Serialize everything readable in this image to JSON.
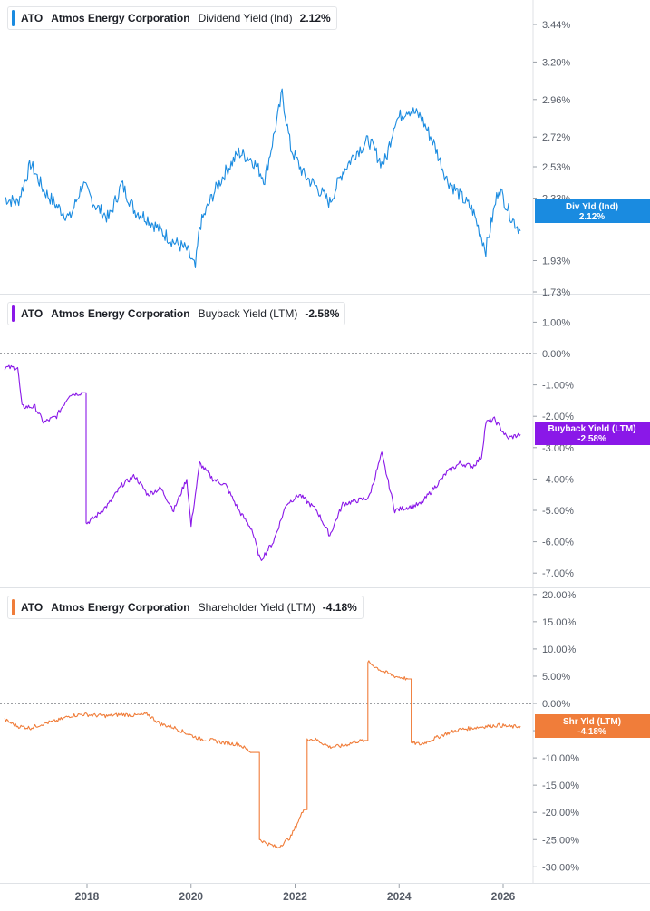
{
  "colors": {
    "dividend": "#1a8be0",
    "buyback": "#8a18e8",
    "shareholder": "#f07d3a",
    "grid": "#dfe2e6",
    "axis_text": "#555b66"
  },
  "x_axis": {
    "ticks": [
      "2018",
      "2020",
      "2022",
      "2024",
      "2026"
    ]
  },
  "panels": [
    {
      "legend": {
        "ticker": "ATO",
        "company": "Atmos Energy Corporation",
        "metric": "Dividend Yield (Ind)",
        "value": "2.12%"
      },
      "badge": {
        "label": "Div Yld (Ind)",
        "value": "2.12%"
      },
      "y_ticks": [
        "3.44%",
        "3.20%",
        "2.96%",
        "2.72%",
        "2.53%",
        "2.33%",
        "1.93%",
        "1.73%"
      ]
    },
    {
      "legend": {
        "ticker": "ATO",
        "company": "Atmos Energy Corporation",
        "metric": "Buyback Yield (LTM)",
        "value": "-2.58%"
      },
      "badge": {
        "label": "Buyback Yield (LTM)",
        "value": "-2.58%"
      },
      "y_ticks": [
        "1.00%",
        "0.00%",
        "-1.00%",
        "-2.00%",
        "-3.00%",
        "-4.00%",
        "-5.00%",
        "-6.00%",
        "-7.00%"
      ]
    },
    {
      "legend": {
        "ticker": "ATO",
        "company": "Atmos Energy Corporation",
        "metric": "Shareholder Yield (LTM)",
        "value": "-4.18%"
      },
      "badge": {
        "label": "Shr Yld (LTM)",
        "value": "-4.18%"
      },
      "y_ticks": [
        "20.00%",
        "15.00%",
        "10.00%",
        "5.00%",
        "0.00%",
        "-5.00%",
        "-10.00%",
        "-15.00%",
        "-20.00%",
        "-25.00%",
        "-30.00%"
      ]
    }
  ],
  "chart_data": [
    {
      "type": "line",
      "series": [
        {
          "name": "Dividend Yield (Ind)",
          "unit": "%",
          "x": [
            "2016-06",
            "2016-09",
            "2016-12",
            "2017-03",
            "2017-06",
            "2017-09",
            "2017-12",
            "2018-03",
            "2018-06",
            "2018-09",
            "2018-12",
            "2019-03",
            "2019-06",
            "2019-09",
            "2019-12",
            "2020-02",
            "2020-03",
            "2020-06",
            "2020-09",
            "2020-12",
            "2021-03",
            "2021-06",
            "2021-09",
            "2021-10",
            "2021-12",
            "2022-03",
            "2022-06",
            "2022-09",
            "2022-12",
            "2023-03",
            "2023-06",
            "2023-09",
            "2023-10",
            "2023-12",
            "2024-03",
            "2024-06",
            "2024-09",
            "2024-12",
            "2025-03",
            "2025-06",
            "2025-09",
            "2025-12",
            "2026-03",
            "2026-05"
          ],
          "values": [
            2.33,
            2.3,
            2.55,
            2.38,
            2.28,
            2.2,
            2.42,
            2.28,
            2.2,
            2.42,
            2.25,
            2.2,
            2.12,
            2.05,
            2.0,
            1.88,
            2.15,
            2.35,
            2.5,
            2.62,
            2.58,
            2.45,
            2.85,
            3.0,
            2.65,
            2.48,
            2.4,
            2.3,
            2.5,
            2.62,
            2.7,
            2.55,
            2.58,
            2.82,
            2.9,
            2.85,
            2.68,
            2.45,
            2.35,
            2.25,
            2.0,
            2.4,
            2.2,
            2.12
          ]
        }
      ],
      "ylim": [
        1.73,
        3.56
      ]
    },
    {
      "type": "line",
      "series": [
        {
          "name": "Buyback Yield (LTM)",
          "unit": "%",
          "x": [
            "2016-06",
            "2016-09",
            "2016-10",
            "2017-01",
            "2017-03",
            "2017-06",
            "2017-09",
            "2017-12",
            "2018-01",
            "2018-03",
            "2018-06",
            "2018-09",
            "2018-12",
            "2019-03",
            "2019-06",
            "2019-09",
            "2019-12",
            "2020-01",
            "2020-03",
            "2020-06",
            "2020-09",
            "2020-12",
            "2021-03",
            "2021-05",
            "2021-08",
            "2021-11",
            "2022-02",
            "2022-06",
            "2022-09",
            "2022-12",
            "2023-03",
            "2023-06",
            "2023-09",
            "2023-12",
            "2024-03",
            "2024-06",
            "2024-09",
            "2024-12",
            "2025-03",
            "2025-06",
            "2025-08",
            "2025-09",
            "2025-11",
            "2026-02",
            "2026-05"
          ],
          "values": [
            -0.45,
            -0.45,
            -1.7,
            -1.7,
            -2.2,
            -2.0,
            -1.3,
            -1.25,
            -5.4,
            -5.2,
            -4.8,
            -4.2,
            -3.9,
            -4.5,
            -4.3,
            -5.0,
            -4.0,
            -5.5,
            -3.5,
            -4.0,
            -4.2,
            -5.0,
            -5.6,
            -6.6,
            -6.0,
            -4.8,
            -4.5,
            -5.0,
            -5.8,
            -4.8,
            -4.7,
            -4.6,
            -3.2,
            -5.0,
            -4.9,
            -4.8,
            -4.3,
            -3.8,
            -3.5,
            -3.6,
            -3.3,
            -2.2,
            -2.1,
            -2.7,
            -2.58
          ]
        }
      ],
      "ylim": [
        -7.3,
        1.5
      ]
    },
    {
      "type": "line",
      "series": [
        {
          "name": "Shareholder Yield (LTM)",
          "unit": "%",
          "x": [
            "2016-06",
            "2016-09",
            "2016-12",
            "2017-03",
            "2017-06",
            "2017-09",
            "2017-12",
            "2018-03",
            "2018-06",
            "2018-09",
            "2018-12",
            "2019-03",
            "2019-06",
            "2019-09",
            "2019-12",
            "2020-03",
            "2020-06",
            "2020-09",
            "2020-12",
            "2021-03",
            "2021-05",
            "2021-06",
            "2021-09",
            "2021-12",
            "2022-03",
            "2022-04",
            "2022-06",
            "2022-09",
            "2022-12",
            "2023-03",
            "2023-05",
            "2023-06",
            "2023-09",
            "2023-12",
            "2024-03",
            "2024-04",
            "2024-06",
            "2024-09",
            "2024-12",
            "2025-03",
            "2025-06",
            "2025-09",
            "2025-12",
            "2026-03",
            "2026-05"
          ],
          "values": [
            -3.0,
            -4.2,
            -4.5,
            -3.7,
            -3.2,
            -2.3,
            -2.0,
            -2.2,
            -2.3,
            -2.0,
            -2.2,
            -2.0,
            -3.8,
            -4.4,
            -5.5,
            -6.5,
            -6.8,
            -7.3,
            -7.5,
            -9.0,
            -25.0,
            -25.5,
            -26.5,
            -24.5,
            -19.5,
            -6.5,
            -6.7,
            -8.0,
            -7.8,
            -7.0,
            -6.8,
            7.5,
            6.0,
            5.0,
            4.5,
            -7.2,
            -7.5,
            -6.5,
            -5.5,
            -4.8,
            -4.5,
            -4.2,
            -4.0,
            -4.3,
            -4.18
          ]
        }
      ],
      "ylim": [
        -31.5,
        21.0
      ]
    }
  ]
}
